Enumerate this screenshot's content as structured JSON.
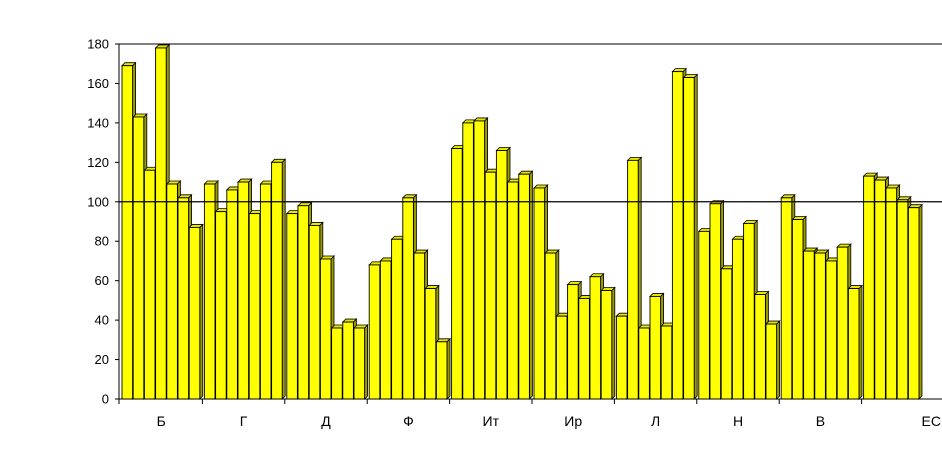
{
  "chart_data": {
    "type": "bar",
    "title": "",
    "xlabel": "",
    "ylabel": "",
    "ylim": [
      0,
      180
    ],
    "yticks": [
      0,
      20,
      40,
      60,
      80,
      100,
      120,
      140,
      160,
      180
    ],
    "reference_line": 100,
    "bar_color": "#ffff00",
    "bar_side_color": "#9a9a00",
    "bar_outline_color": "#000000",
    "grid": false,
    "legend": "none",
    "groups": [
      {
        "label": "Б",
        "values": [
          169,
          143,
          116,
          178,
          109,
          102,
          87
        ]
      },
      {
        "label": "Г",
        "values": [
          109,
          95,
          106,
          110,
          94,
          109,
          120
        ]
      },
      {
        "label": "Д",
        "values": [
          94,
          98,
          88,
          71,
          36,
          39,
          36
        ]
      },
      {
        "label": "Ф",
        "values": [
          68,
          70,
          81,
          102,
          74,
          56,
          29
        ]
      },
      {
        "label": "Ит",
        "values": [
          127,
          140,
          141,
          115,
          126,
          110,
          114
        ]
      },
      {
        "label": "Ир",
        "values": [
          107,
          74,
          42,
          58,
          51,
          62,
          55
        ]
      },
      {
        "label": "Л",
        "values": [
          42,
          121,
          36,
          52,
          37,
          166,
          163
        ]
      },
      {
        "label": "Н",
        "values": [
          85,
          99,
          66,
          81,
          89,
          53,
          38
        ]
      },
      {
        "label": "В",
        "values": [
          102,
          91,
          75,
          74,
          70,
          77,
          56
        ]
      },
      {
        "label": "ЕС",
        "values": [
          113,
          111,
          107,
          101,
          97
        ]
      }
    ]
  }
}
